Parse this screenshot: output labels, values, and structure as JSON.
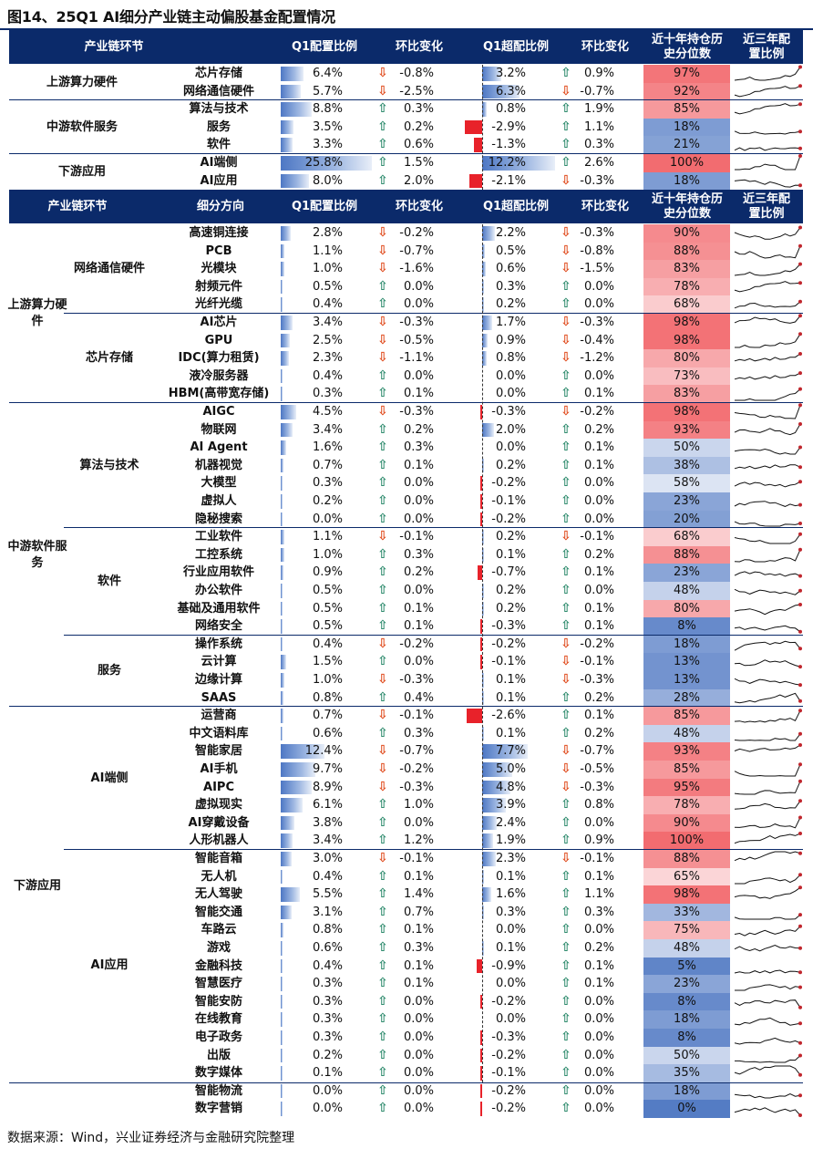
{
  "title": "图14、25Q1 AI细分产业链主动偏股基金配置情况",
  "footer": "数据来源：Wind，兴业证券经济与金融研究院整理",
  "colors": {
    "header_bg": "#0b2a6a",
    "up": "#2e8b6d",
    "down": "#e04b1d",
    "neg_bar": "#e8222a"
  },
  "headers1": {
    "c1": "产业链环节",
    "c2": "Q1配置比例",
    "c3": "环比变化",
    "c4": "Q1超配比例",
    "c5": "环比变化",
    "c6": "近十年持仓历史分位数",
    "c7": "近三年配置比例"
  },
  "headers2": {
    "c1": "产业链环节",
    "c1b": "细分方向",
    "c2": "Q1配置比例",
    "c3": "环比变化",
    "c4": "Q1超配比例",
    "c5": "环比变化",
    "c6": "近十年持仓历史分位数",
    "c7": "近三年配置比例"
  },
  "table1_groups": [
    {
      "name": "上游算力硬件",
      "rows": [
        0,
        1
      ]
    },
    {
      "name": "中游软件服务",
      "rows": [
        2,
        4
      ]
    },
    {
      "name": "下游应用",
      "rows": [
        5,
        6
      ]
    }
  ],
  "table1": [
    {
      "name": "芯片存储",
      "alloc": "6.4%",
      "alloc_v": 6.4,
      "chg": "-0.8%",
      "chg_dir": "down",
      "over": "3.2%",
      "over_v": 3.2,
      "over_chg": "0.9%",
      "over_dir": "up",
      "pct": "97%",
      "pct_v": 97
    },
    {
      "name": "网络通信硬件",
      "alloc": "5.7%",
      "alloc_v": 5.7,
      "chg": "-2.5%",
      "chg_dir": "down",
      "over": "6.3%",
      "over_v": 6.3,
      "over_chg": "-0.7%",
      "over_dir": "down",
      "pct": "92%",
      "pct_v": 92
    },
    {
      "name": "算法与技术",
      "alloc": "8.8%",
      "alloc_v": 8.8,
      "chg": "0.3%",
      "chg_dir": "up",
      "over": "0.8%",
      "over_v": 0.8,
      "over_chg": "1.9%",
      "over_dir": "up",
      "pct": "85%",
      "pct_v": 85
    },
    {
      "name": "服务",
      "alloc": "3.5%",
      "alloc_v": 3.5,
      "chg": "0.2%",
      "chg_dir": "up",
      "over": "-2.9%",
      "over_v": -2.9,
      "over_chg": "1.1%",
      "over_dir": "up",
      "pct": "18%",
      "pct_v": 18
    },
    {
      "name": "软件",
      "alloc": "3.3%",
      "alloc_v": 3.3,
      "chg": "0.6%",
      "chg_dir": "up",
      "over": "-1.3%",
      "over_v": -1.3,
      "over_chg": "0.3%",
      "over_dir": "up",
      "pct": "21%",
      "pct_v": 21
    },
    {
      "name": "AI端侧",
      "alloc": "25.8%",
      "alloc_v": 25.8,
      "chg": "1.5%",
      "chg_dir": "up",
      "over": "12.2%",
      "over_v": 12.2,
      "over_chg": "2.6%",
      "over_dir": "up",
      "pct": "100%",
      "pct_v": 100
    },
    {
      "name": "AI应用",
      "alloc": "8.0%",
      "alloc_v": 8.0,
      "chg": "2.0%",
      "chg_dir": "up",
      "over": "-2.1%",
      "over_v": -2.1,
      "over_chg": "-0.3%",
      "over_dir": "down",
      "pct": "18%",
      "pct_v": 18
    }
  ],
  "table2_top": [
    {
      "name": "上游算力硬件",
      "rows": [
        0,
        9
      ]
    },
    {
      "name": "中游软件服务",
      "rows": [
        10,
        26
      ]
    },
    {
      "name": "下游应用",
      "rows": [
        27,
        47
      ]
    }
  ],
  "table2_mid": [
    {
      "name": "网络通信硬件",
      "rows": [
        0,
        4
      ]
    },
    {
      "name": "芯片存储",
      "rows": [
        5,
        9
      ]
    },
    {
      "name": "算法与技术",
      "rows": [
        10,
        16
      ]
    },
    {
      "name": "软件",
      "rows": [
        17,
        22
      ]
    },
    {
      "name": "服务",
      "rows": [
        23,
        26
      ]
    },
    {
      "name": "AI端侧",
      "rows": [
        27,
        34
      ]
    },
    {
      "name": "AI应用",
      "rows": [
        35,
        47
      ]
    }
  ],
  "table2": [
    {
      "name": "高速铜连接",
      "alloc": "2.8%",
      "alloc_v": 2.8,
      "chg": "-0.2%",
      "chg_dir": "down",
      "over": "2.2%",
      "over_v": 2.2,
      "over_chg": "-0.3%",
      "over_dir": "down",
      "pct": "90%",
      "pct_v": 90
    },
    {
      "name": "PCB",
      "alloc": "1.1%",
      "alloc_v": 1.1,
      "chg": "-0.7%",
      "chg_dir": "down",
      "over": "0.5%",
      "over_v": 0.5,
      "over_chg": "-0.8%",
      "over_dir": "down",
      "pct": "88%",
      "pct_v": 88
    },
    {
      "name": "光模块",
      "alloc": "1.0%",
      "alloc_v": 1.0,
      "chg": "-1.6%",
      "chg_dir": "down",
      "over": "0.6%",
      "over_v": 0.6,
      "over_chg": "-1.5%",
      "over_dir": "down",
      "pct": "83%",
      "pct_v": 83
    },
    {
      "name": "射频元件",
      "alloc": "0.5%",
      "alloc_v": 0.5,
      "chg": "0.0%",
      "chg_dir": "up",
      "over": "0.3%",
      "over_v": 0.3,
      "over_chg": "0.0%",
      "over_dir": "up",
      "pct": "78%",
      "pct_v": 78
    },
    {
      "name": "光纤光缆",
      "alloc": "0.4%",
      "alloc_v": 0.4,
      "chg": "0.0%",
      "chg_dir": "up",
      "over": "0.2%",
      "over_v": 0.2,
      "over_chg": "0.0%",
      "over_dir": "up",
      "pct": "68%",
      "pct_v": 68
    },
    {
      "name": "AI芯片",
      "alloc": "3.4%",
      "alloc_v": 3.4,
      "chg": "-0.3%",
      "chg_dir": "down",
      "over": "1.7%",
      "over_v": 1.7,
      "over_chg": "-0.3%",
      "over_dir": "down",
      "pct": "98%",
      "pct_v": 98
    },
    {
      "name": "GPU",
      "alloc": "2.5%",
      "alloc_v": 2.5,
      "chg": "-0.5%",
      "chg_dir": "down",
      "over": "0.9%",
      "over_v": 0.9,
      "over_chg": "-0.4%",
      "over_dir": "down",
      "pct": "98%",
      "pct_v": 98
    },
    {
      "name": "IDC(算力租赁)",
      "alloc": "2.3%",
      "alloc_v": 2.3,
      "chg": "-1.1%",
      "chg_dir": "down",
      "over": "0.8%",
      "over_v": 0.8,
      "over_chg": "-1.2%",
      "over_dir": "down",
      "pct": "80%",
      "pct_v": 80
    },
    {
      "name": "液冷服务器",
      "alloc": "0.4%",
      "alloc_v": 0.4,
      "chg": "0.0%",
      "chg_dir": "up",
      "over": "0.0%",
      "over_v": 0.0,
      "over_chg": "0.0%",
      "over_dir": "up",
      "pct": "73%",
      "pct_v": 73
    },
    {
      "name": "HBM(高带宽存储)",
      "alloc": "0.3%",
      "alloc_v": 0.3,
      "chg": "0.1%",
      "chg_dir": "up",
      "over": "0.0%",
      "over_v": 0.0,
      "over_chg": "0.1%",
      "over_dir": "up",
      "pct": "83%",
      "pct_v": 83
    },
    {
      "name": "AIGC",
      "alloc": "4.5%",
      "alloc_v": 4.5,
      "chg": "-0.3%",
      "chg_dir": "down",
      "over": "-0.3%",
      "over_v": -0.3,
      "over_chg": "-0.2%",
      "over_dir": "down",
      "pct": "98%",
      "pct_v": 98
    },
    {
      "name": "物联网",
      "alloc": "3.4%",
      "alloc_v": 3.4,
      "chg": "0.2%",
      "chg_dir": "up",
      "over": "2.0%",
      "over_v": 2.0,
      "over_chg": "0.2%",
      "over_dir": "up",
      "pct": "93%",
      "pct_v": 93
    },
    {
      "name": "AI Agent",
      "alloc": "1.6%",
      "alloc_v": 1.6,
      "chg": "0.3%",
      "chg_dir": "up",
      "over": "0.0%",
      "over_v": 0.0,
      "over_chg": "0.1%",
      "over_dir": "up",
      "pct": "50%",
      "pct_v": 50
    },
    {
      "name": "机器视觉",
      "alloc": "0.7%",
      "alloc_v": 0.7,
      "chg": "0.1%",
      "chg_dir": "up",
      "over": "0.2%",
      "over_v": 0.2,
      "over_chg": "0.1%",
      "over_dir": "up",
      "pct": "38%",
      "pct_v": 38
    },
    {
      "name": "大模型",
      "alloc": "0.3%",
      "alloc_v": 0.3,
      "chg": "0.0%",
      "chg_dir": "up",
      "over": "-0.2%",
      "over_v": -0.2,
      "over_chg": "0.0%",
      "over_dir": "up",
      "pct": "58%",
      "pct_v": 58
    },
    {
      "name": "虚拟人",
      "alloc": "0.2%",
      "alloc_v": 0.2,
      "chg": "0.0%",
      "chg_dir": "up",
      "over": "-0.1%",
      "over_v": -0.1,
      "over_chg": "0.0%",
      "over_dir": "up",
      "pct": "23%",
      "pct_v": 23
    },
    {
      "name": "隐秘搜索",
      "alloc": "0.0%",
      "alloc_v": 0.0,
      "chg": "0.0%",
      "chg_dir": "up",
      "over": "-0.2%",
      "over_v": -0.2,
      "over_chg": "0.0%",
      "over_dir": "up",
      "pct": "20%",
      "pct_v": 20
    },
    {
      "name": "工业软件",
      "alloc": "1.1%",
      "alloc_v": 1.1,
      "chg": "-0.1%",
      "chg_dir": "down",
      "over": "0.2%",
      "over_v": 0.2,
      "over_chg": "-0.1%",
      "over_dir": "down",
      "pct": "68%",
      "pct_v": 68
    },
    {
      "name": "工控系统",
      "alloc": "1.0%",
      "alloc_v": 1.0,
      "chg": "0.3%",
      "chg_dir": "up",
      "over": "0.1%",
      "over_v": 0.1,
      "over_chg": "0.2%",
      "over_dir": "up",
      "pct": "88%",
      "pct_v": 88
    },
    {
      "name": "行业应用软件",
      "alloc": "0.9%",
      "alloc_v": 0.9,
      "chg": "0.2%",
      "chg_dir": "up",
      "over": "-0.7%",
      "over_v": -0.7,
      "over_chg": "0.1%",
      "over_dir": "up",
      "pct": "23%",
      "pct_v": 23
    },
    {
      "name": "办公软件",
      "alloc": "0.5%",
      "alloc_v": 0.5,
      "chg": "0.0%",
      "chg_dir": "up",
      "over": "0.2%",
      "over_v": 0.2,
      "over_chg": "0.0%",
      "over_dir": "up",
      "pct": "48%",
      "pct_v": 48
    },
    {
      "name": "基础及通用软件",
      "alloc": "0.5%",
      "alloc_v": 0.5,
      "chg": "0.1%",
      "chg_dir": "up",
      "over": "0.2%",
      "over_v": 0.2,
      "over_chg": "0.1%",
      "over_dir": "up",
      "pct": "80%",
      "pct_v": 80
    },
    {
      "name": "网络安全",
      "alloc": "0.5%",
      "alloc_v": 0.5,
      "chg": "0.1%",
      "chg_dir": "up",
      "over": "-0.3%",
      "over_v": -0.3,
      "over_chg": "0.1%",
      "over_dir": "up",
      "pct": "8%",
      "pct_v": 8
    },
    {
      "name": "操作系统",
      "alloc": "0.4%",
      "alloc_v": 0.4,
      "chg": "-0.2%",
      "chg_dir": "down",
      "over": "-0.2%",
      "over_v": -0.2,
      "over_chg": "-0.2%",
      "over_dir": "down",
      "pct": "18%",
      "pct_v": 18
    },
    {
      "name": "云计算",
      "alloc": "1.5%",
      "alloc_v": 1.5,
      "chg": "0.0%",
      "chg_dir": "up",
      "over": "-0.1%",
      "over_v": -0.1,
      "over_chg": "-0.1%",
      "over_dir": "down",
      "pct": "13%",
      "pct_v": 13
    },
    {
      "name": "边缘计算",
      "alloc": "1.0%",
      "alloc_v": 1.0,
      "chg": "-0.3%",
      "chg_dir": "down",
      "over": "0.1%",
      "over_v": 0.1,
      "over_chg": "-0.3%",
      "over_dir": "down",
      "pct": "13%",
      "pct_v": 13
    },
    {
      "name": "SAAS",
      "alloc": "0.8%",
      "alloc_v": 0.8,
      "chg": "0.4%",
      "chg_dir": "up",
      "over": "0.1%",
      "over_v": 0.1,
      "over_chg": "0.2%",
      "over_dir": "up",
      "pct": "28%",
      "pct_v": 28
    },
    {
      "name": "运营商",
      "alloc": "0.7%",
      "alloc_v": 0.7,
      "chg": "-0.1%",
      "chg_dir": "down",
      "over": "-2.6%",
      "over_v": -2.6,
      "over_chg": "0.1%",
      "over_dir": "up",
      "pct": "85%",
      "pct_v": 85
    },
    {
      "name": "中文语料库",
      "alloc": "0.6%",
      "alloc_v": 0.6,
      "chg": "0.3%",
      "chg_dir": "up",
      "over": "0.1%",
      "over_v": 0.1,
      "over_chg": "0.2%",
      "over_dir": "up",
      "pct": "48%",
      "pct_v": 48
    },
    {
      "name": "智能家居",
      "alloc": "12.4%",
      "alloc_v": 12.4,
      "chg": "-0.7%",
      "chg_dir": "down",
      "over": "7.7%",
      "over_v": 7.7,
      "over_chg": "-0.7%",
      "over_dir": "down",
      "pct": "93%",
      "pct_v": 93
    },
    {
      "name": "AI手机",
      "alloc": "9.7%",
      "alloc_v": 9.7,
      "chg": "-0.2%",
      "chg_dir": "down",
      "over": "5.0%",
      "over_v": 5.0,
      "over_chg": "-0.5%",
      "over_dir": "down",
      "pct": "85%",
      "pct_v": 85
    },
    {
      "name": "AIPC",
      "alloc": "8.9%",
      "alloc_v": 8.9,
      "chg": "-0.3%",
      "chg_dir": "down",
      "over": "4.8%",
      "over_v": 4.8,
      "over_chg": "-0.3%",
      "over_dir": "down",
      "pct": "95%",
      "pct_v": 95
    },
    {
      "name": "虚拟现实",
      "alloc": "6.1%",
      "alloc_v": 6.1,
      "chg": "1.0%",
      "chg_dir": "up",
      "over": "3.9%",
      "over_v": 3.9,
      "over_chg": "0.8%",
      "over_dir": "up",
      "pct": "78%",
      "pct_v": 78
    },
    {
      "name": "AI穿戴设备",
      "alloc": "3.8%",
      "alloc_v": 3.8,
      "chg": "0.0%",
      "chg_dir": "up",
      "over": "2.4%",
      "over_v": 2.4,
      "over_chg": "0.0%",
      "over_dir": "up",
      "pct": "90%",
      "pct_v": 90
    },
    {
      "name": "人形机器人",
      "alloc": "3.4%",
      "alloc_v": 3.4,
      "chg": "1.2%",
      "chg_dir": "up",
      "over": "1.9%",
      "over_v": 1.9,
      "over_chg": "0.9%",
      "over_dir": "up",
      "pct": "100%",
      "pct_v": 100
    },
    {
      "name": "智能音箱",
      "alloc": "3.0%",
      "alloc_v": 3.0,
      "chg": "-0.1%",
      "chg_dir": "down",
      "over": "2.3%",
      "over_v": 2.3,
      "over_chg": "-0.1%",
      "over_dir": "down",
      "pct": "88%",
      "pct_v": 88
    },
    {
      "name": "无人机",
      "alloc": "0.4%",
      "alloc_v": 0.4,
      "chg": "0.1%",
      "chg_dir": "up",
      "over": "0.1%",
      "over_v": 0.1,
      "over_chg": "0.1%",
      "over_dir": "up",
      "pct": "65%",
      "pct_v": 65
    },
    {
      "name": "无人驾驶",
      "alloc": "5.5%",
      "alloc_v": 5.5,
      "chg": "1.4%",
      "chg_dir": "up",
      "over": "1.6%",
      "over_v": 1.6,
      "over_chg": "1.1%",
      "over_dir": "up",
      "pct": "98%",
      "pct_v": 98
    },
    {
      "name": "智能交通",
      "alloc": "3.1%",
      "alloc_v": 3.1,
      "chg": "0.7%",
      "chg_dir": "up",
      "over": "0.3%",
      "over_v": 0.3,
      "over_chg": "0.3%",
      "over_dir": "up",
      "pct": "33%",
      "pct_v": 33
    },
    {
      "name": "车路云",
      "alloc": "0.8%",
      "alloc_v": 0.8,
      "chg": "0.1%",
      "chg_dir": "up",
      "over": "0.0%",
      "over_v": 0.0,
      "over_chg": "0.0%",
      "over_dir": "up",
      "pct": "75%",
      "pct_v": 75
    },
    {
      "name": "游戏",
      "alloc": "0.6%",
      "alloc_v": 0.6,
      "chg": "0.3%",
      "chg_dir": "up",
      "over": "0.1%",
      "over_v": 0.1,
      "over_chg": "0.2%",
      "over_dir": "up",
      "pct": "48%",
      "pct_v": 48
    },
    {
      "name": "金融科技",
      "alloc": "0.4%",
      "alloc_v": 0.4,
      "chg": "0.1%",
      "chg_dir": "up",
      "over": "-0.9%",
      "over_v": -0.9,
      "over_chg": "0.1%",
      "over_dir": "up",
      "pct": "5%",
      "pct_v": 5
    },
    {
      "name": "智慧医疗",
      "alloc": "0.3%",
      "alloc_v": 0.3,
      "chg": "0.1%",
      "chg_dir": "up",
      "over": "0.0%",
      "over_v": 0.0,
      "over_chg": "0.1%",
      "over_dir": "up",
      "pct": "23%",
      "pct_v": 23
    },
    {
      "name": "智能安防",
      "alloc": "0.3%",
      "alloc_v": 0.3,
      "chg": "0.0%",
      "chg_dir": "up",
      "over": "-0.2%",
      "over_v": -0.2,
      "over_chg": "0.0%",
      "over_dir": "up",
      "pct": "8%",
      "pct_v": 8
    },
    {
      "name": "在线教育",
      "alloc": "0.3%",
      "alloc_v": 0.3,
      "chg": "0.0%",
      "chg_dir": "up",
      "over": "0.0%",
      "over_v": 0.0,
      "over_chg": "0.0%",
      "over_dir": "up",
      "pct": "18%",
      "pct_v": 18
    },
    {
      "name": "电子政务",
      "alloc": "0.3%",
      "alloc_v": 0.3,
      "chg": "0.0%",
      "chg_dir": "up",
      "over": "-0.3%",
      "over_v": -0.3,
      "over_chg": "0.0%",
      "over_dir": "up",
      "pct": "8%",
      "pct_v": 8
    },
    {
      "name": "出版",
      "alloc": "0.2%",
      "alloc_v": 0.2,
      "chg": "0.0%",
      "chg_dir": "up",
      "over": "-0.2%",
      "over_v": -0.2,
      "over_chg": "0.0%",
      "over_dir": "up",
      "pct": "50%",
      "pct_v": 50
    },
    {
      "name": "数字媒体",
      "alloc": "0.1%",
      "alloc_v": 0.1,
      "chg": "0.0%",
      "chg_dir": "up",
      "over": "-0.1%",
      "over_v": -0.1,
      "over_chg": "0.0%",
      "over_dir": "up",
      "pct": "35%",
      "pct_v": 35
    },
    {
      "name": "智能物流",
      "alloc": "0.0%",
      "alloc_v": 0.0,
      "chg": "0.0%",
      "chg_dir": "up",
      "over": "-0.2%",
      "over_v": -0.2,
      "over_chg": "0.0%",
      "over_dir": "up",
      "pct": "18%",
      "pct_v": 18
    },
    {
      "name": "数字营销",
      "alloc": "0.0%",
      "alloc_v": 0.0,
      "chg": "0.0%",
      "chg_dir": "up",
      "over": "-0.2%",
      "over_v": -0.2,
      "over_chg": "0.0%",
      "over_dir": "up",
      "pct": "0%",
      "pct_v": 0
    }
  ]
}
